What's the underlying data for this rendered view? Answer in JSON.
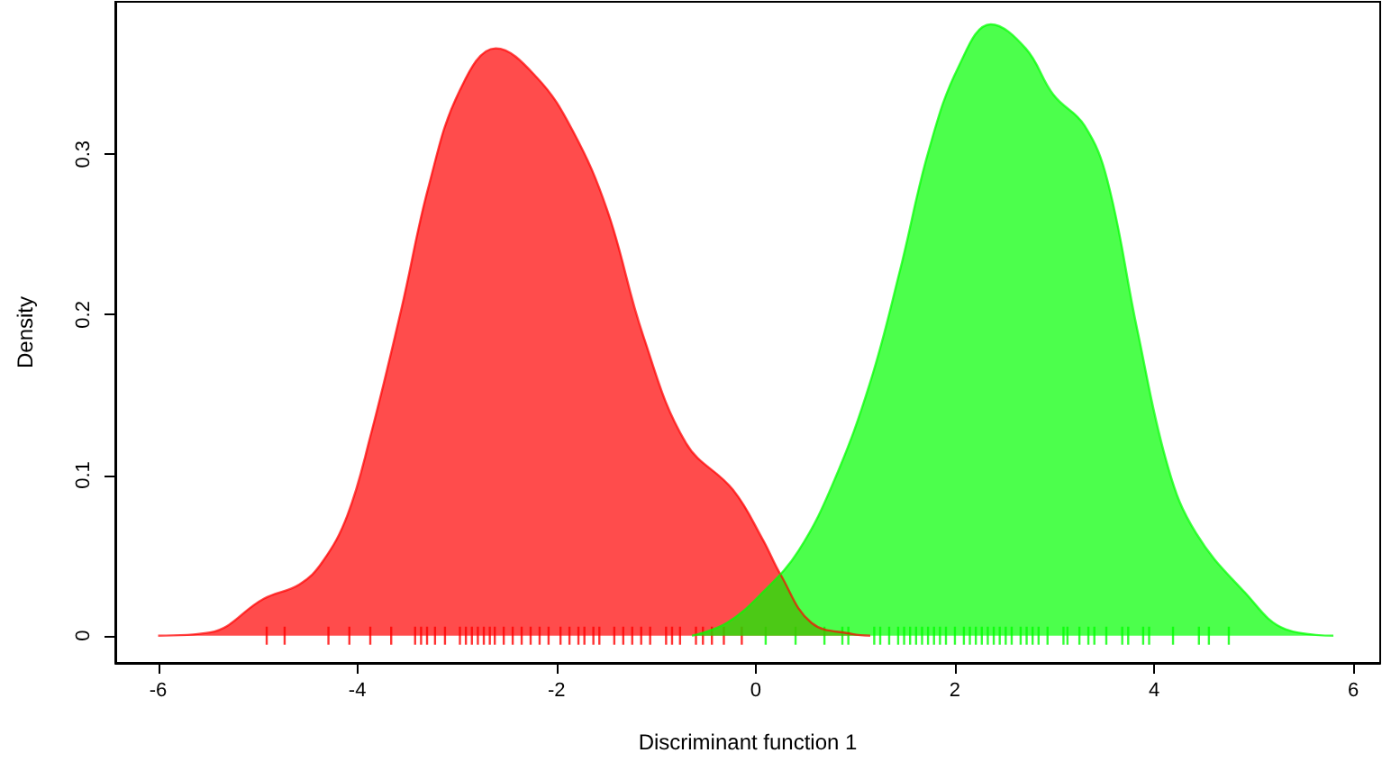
{
  "chart_data": {
    "type": "area",
    "xlabel": "Discriminant function 1",
    "ylabel": "Density",
    "xlim": [
      -6.43,
      6.27
    ],
    "ylim": [
      -0.017,
      0.395
    ],
    "xticks": [
      -6,
      -4,
      -2,
      0,
      2,
      4,
      6
    ],
    "yticks": [
      0,
      0.1,
      0.2,
      0.3
    ],
    "grid": false,
    "series": [
      {
        "color": "#ff0000",
        "x": [
          -6.0,
          -5.48,
          -4.94,
          -4.58,
          -4.35,
          -4.1,
          -3.87,
          -3.56,
          -3.28,
          -2.97,
          -2.61,
          -2.2,
          -1.84,
          -1.49,
          -1.13,
          -0.7,
          -0.23,
          0.07,
          0.25,
          0.56,
          0.97,
          1.15
        ],
        "values": [
          0,
          0.002,
          0.023,
          0.032,
          0.046,
          0.075,
          0.124,
          0.203,
          0.281,
          0.34,
          0.366,
          0.348,
          0.315,
          0.265,
          0.187,
          0.12,
          0.091,
          0.06,
          0.038,
          0.008,
          0.001,
          0
        ]
      },
      {
        "color": "#00ff00",
        "x": [
          -0.64,
          -0.29,
          0.07,
          0.43,
          0.79,
          1.15,
          1.45,
          1.74,
          2.04,
          2.36,
          2.71,
          2.99,
          3.3,
          3.53,
          3.83,
          4.14,
          4.42,
          4.91,
          5.32,
          5.8
        ],
        "values": [
          0,
          0.008,
          0.027,
          0.053,
          0.097,
          0.158,
          0.228,
          0.303,
          0.355,
          0.381,
          0.366,
          0.337,
          0.318,
          0.284,
          0.191,
          0.105,
          0.064,
          0.027,
          0.004,
          0
        ]
      },
      {
        "type": "scatter",
        "color": "#ff0000",
        "x": [
          -4.91,
          -4.73,
          -4.29,
          -4.08,
          -3.87,
          -3.66,
          -3.42,
          -3.36,
          -3.3,
          -3.22,
          -3.12,
          -2.97,
          -2.91,
          -2.85,
          -2.79,
          -2.73,
          -2.67,
          -2.62,
          -2.53,
          -2.44,
          -2.35,
          -2.26,
          -2.17,
          -2.08,
          -1.96,
          -1.87,
          -1.78,
          -1.72,
          -1.63,
          -1.57,
          -1.42,
          -1.33,
          -1.24,
          -1.15,
          -1.06,
          -0.9,
          -0.84,
          -0.76,
          -0.6,
          -0.53,
          -0.44,
          -0.32,
          -0.14
        ],
        "values": [
          0,
          0,
          0,
          0,
          0,
          0,
          0,
          0,
          0,
          0,
          0,
          0,
          0,
          0,
          0,
          0,
          0,
          0,
          0,
          0,
          0,
          0,
          0,
          0,
          0,
          0,
          0,
          0,
          0,
          0,
          0,
          0,
          0,
          0,
          0,
          0,
          0,
          0,
          0,
          0,
          0,
          0,
          0
        ]
      },
      {
        "type": "scatter",
        "color": "#00ff00",
        "x": [
          0.1,
          0.4,
          0.69,
          0.87,
          0.93,
          1.19,
          1.25,
          1.34,
          1.43,
          1.49,
          1.55,
          1.61,
          1.67,
          1.73,
          1.79,
          1.85,
          1.91,
          2.0,
          2.09,
          2.15,
          2.21,
          2.27,
          2.33,
          2.39,
          2.45,
          2.51,
          2.57,
          2.66,
          2.72,
          2.78,
          2.84,
          2.93,
          3.09,
          3.13,
          3.25,
          3.34,
          3.4,
          3.52,
          3.68,
          3.74,
          3.89,
          3.95,
          4.19,
          4.45,
          4.55,
          4.75
        ],
        "values": [
          0,
          0,
          0,
          0,
          0,
          0,
          0,
          0,
          0,
          0,
          0,
          0,
          0,
          0,
          0,
          0,
          0,
          0,
          0,
          0,
          0,
          0,
          0,
          0,
          0,
          0,
          0,
          0,
          0,
          0,
          0,
          0,
          0,
          0,
          0,
          0,
          0,
          0,
          0,
          0,
          0,
          0,
          0,
          0,
          0,
          0
        ]
      }
    ]
  }
}
